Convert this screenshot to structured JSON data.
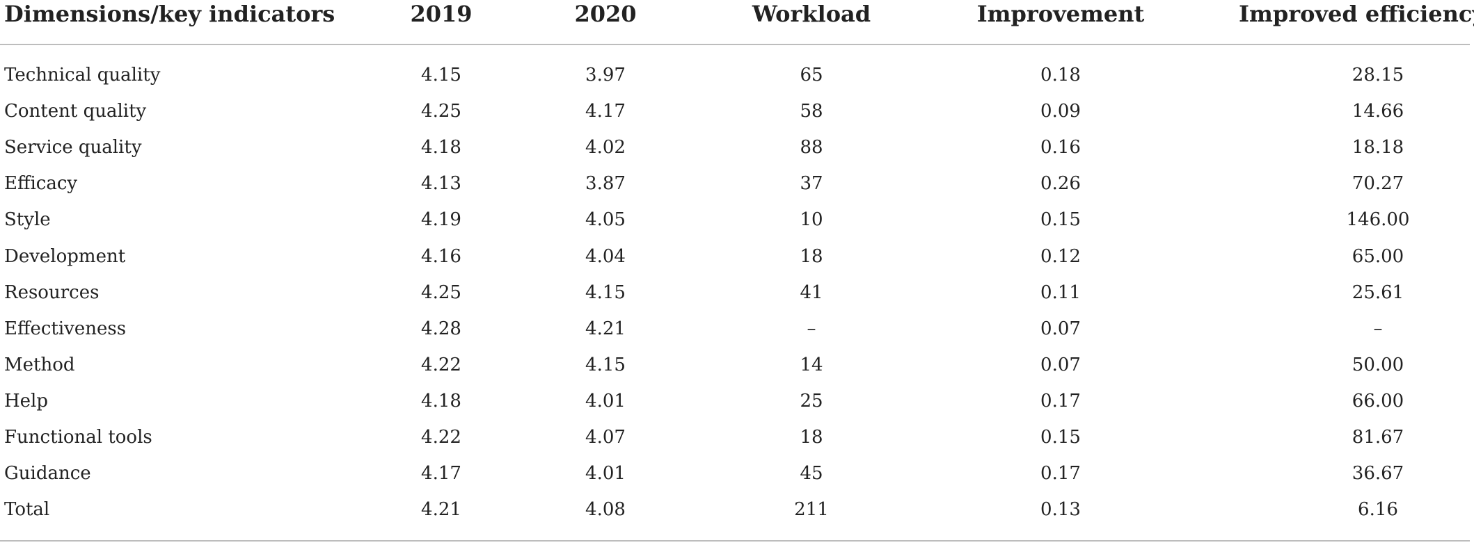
{
  "table": {
    "headers": [
      "Dimensions/key indicators",
      "2019",
      "2020",
      "Workload",
      "Improvement",
      "Improved efficiency"
    ],
    "rows": [
      [
        "Technical quality",
        "4.15",
        "3.97",
        "65",
        "0.18",
        "28.15"
      ],
      [
        "Content quality",
        "4.25",
        "4.17",
        "58",
        "0.09",
        "14.66"
      ],
      [
        "Service quality",
        "4.18",
        "4.02",
        "88",
        "0.16",
        "18.18"
      ],
      [
        "Efficacy",
        "4.13",
        "3.87",
        "37",
        "0.26",
        "70.27"
      ],
      [
        "Style",
        "4.19",
        "4.05",
        "10",
        "0.15",
        "146.00"
      ],
      [
        "Development",
        "4.16",
        "4.04",
        "18",
        "0.12",
        "65.00"
      ],
      [
        "Resources",
        "4.25",
        "4.15",
        "41",
        "0.11",
        "25.61"
      ],
      [
        "Effectiveness",
        "4.28",
        "4.21",
        "–",
        "0.07",
        "–"
      ],
      [
        "Method",
        "4.22",
        "4.15",
        "14",
        "0.07",
        "50.00"
      ],
      [
        "Help",
        "4.18",
        "4.01",
        "25",
        "0.17",
        "66.00"
      ],
      [
        "Functional tools",
        "4.22",
        "4.07",
        "18",
        "0.15",
        "81.67"
      ],
      [
        "Guidance",
        "4.17",
        "4.01",
        "45",
        "0.17",
        "36.67"
      ],
      [
        "Total",
        "4.21",
        "4.08",
        "211",
        "0.13",
        "6.16"
      ]
    ]
  }
}
